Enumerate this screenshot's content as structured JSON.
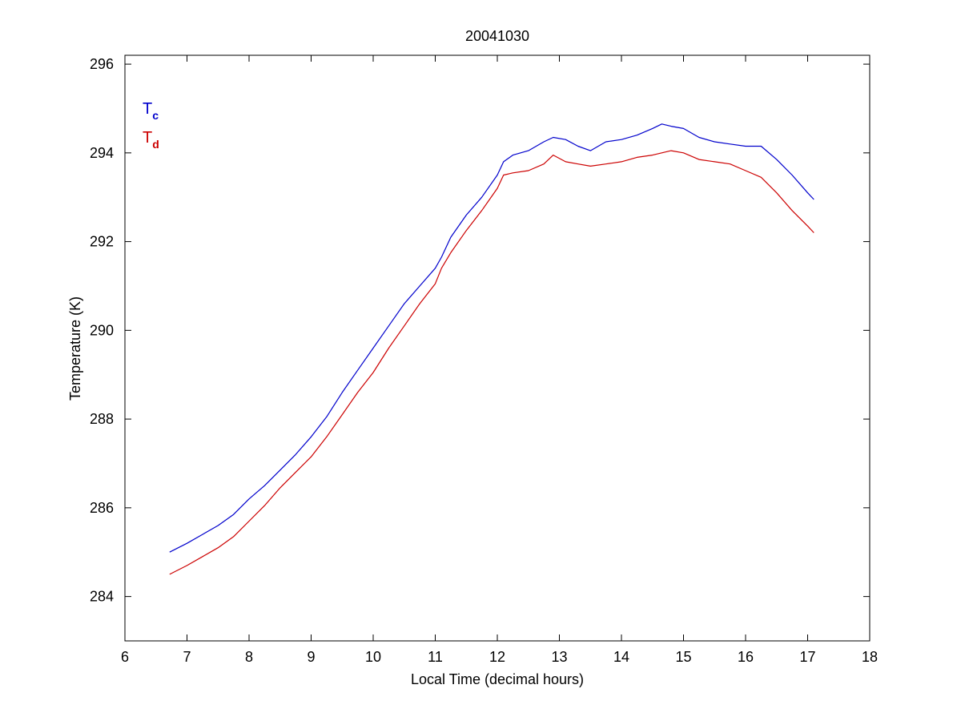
{
  "chart_data": {
    "type": "line",
    "title": "20041030",
    "xlabel": "Local Time (decimal hours)",
    "ylabel": "Temperature (K)",
    "xlim": [
      6,
      18
    ],
    "ylim": [
      283,
      296.2
    ],
    "xticks": [
      6,
      7,
      8,
      9,
      10,
      11,
      12,
      13,
      14,
      15,
      16,
      17,
      18
    ],
    "yticks": [
      284,
      286,
      288,
      290,
      292,
      294,
      296
    ],
    "grid": false,
    "legend_position": "top-left",
    "series": [
      {
        "name": "Tc",
        "legend_main": "T",
        "legend_sub": "c",
        "color": "#0000cc",
        "x": [
          6.72,
          7.0,
          7.25,
          7.5,
          7.75,
          8.0,
          8.25,
          8.5,
          8.75,
          9.0,
          9.25,
          9.5,
          9.75,
          10.0,
          10.25,
          10.5,
          10.75,
          11.0,
          11.1,
          11.25,
          11.5,
          11.75,
          12.0,
          12.1,
          12.25,
          12.5,
          12.75,
          12.9,
          13.1,
          13.3,
          13.5,
          13.75,
          14.0,
          14.25,
          14.5,
          14.65,
          14.8,
          15.0,
          15.25,
          15.5,
          15.75,
          16.0,
          16.25,
          16.5,
          16.75,
          17.0,
          17.1
        ],
        "y": [
          285.0,
          285.2,
          285.4,
          285.6,
          285.85,
          286.2,
          286.5,
          286.85,
          287.2,
          287.6,
          288.05,
          288.6,
          289.1,
          289.6,
          290.1,
          290.6,
          291.0,
          291.4,
          291.65,
          292.1,
          292.6,
          293.0,
          293.5,
          293.8,
          293.95,
          294.05,
          294.25,
          294.35,
          294.3,
          294.15,
          294.05,
          294.25,
          294.3,
          294.4,
          294.55,
          294.65,
          294.6,
          294.55,
          294.35,
          294.25,
          294.2,
          294.15,
          294.15,
          293.85,
          293.5,
          293.1,
          292.95
        ]
      },
      {
        "name": "Td",
        "legend_main": "T",
        "legend_sub": "d",
        "color": "#cc0000",
        "x": [
          6.72,
          7.0,
          7.25,
          7.5,
          7.75,
          8.0,
          8.25,
          8.5,
          8.75,
          9.0,
          9.25,
          9.5,
          9.75,
          10.0,
          10.25,
          10.5,
          10.75,
          11.0,
          11.1,
          11.25,
          11.5,
          11.75,
          12.0,
          12.1,
          12.25,
          12.5,
          12.75,
          12.9,
          13.1,
          13.3,
          13.5,
          13.75,
          14.0,
          14.25,
          14.5,
          14.65,
          14.8,
          15.0,
          15.25,
          15.5,
          15.75,
          16.0,
          16.25,
          16.5,
          16.75,
          17.0,
          17.1
        ],
        "y": [
          284.5,
          284.7,
          284.9,
          285.1,
          285.35,
          285.7,
          286.05,
          286.45,
          286.8,
          287.15,
          287.6,
          288.1,
          288.6,
          289.05,
          289.6,
          290.1,
          290.6,
          291.05,
          291.4,
          291.75,
          292.25,
          292.7,
          293.2,
          293.5,
          293.55,
          293.6,
          293.75,
          293.95,
          293.8,
          293.75,
          293.7,
          293.75,
          293.8,
          293.9,
          293.95,
          294.0,
          294.05,
          294.0,
          293.85,
          293.8,
          293.75,
          293.6,
          293.45,
          293.1,
          292.7,
          292.35,
          292.2
        ]
      }
    ]
  }
}
